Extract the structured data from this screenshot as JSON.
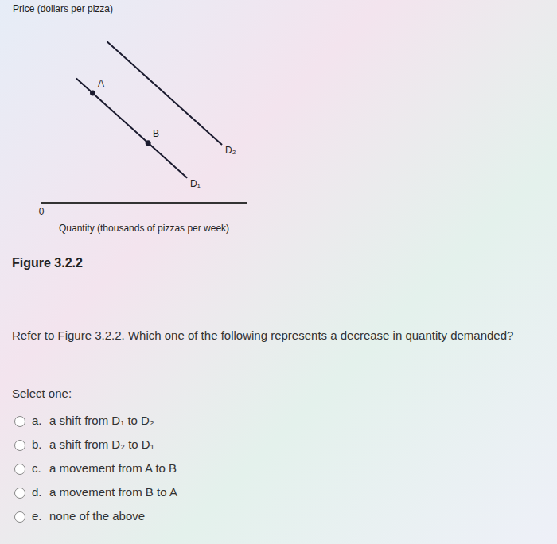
{
  "figure_caption": "Figure 3.2.2",
  "chart_data": {
    "type": "line",
    "x_label": "Quantity (thousands of pizzas per week)",
    "y_label": "Price (dollars per pizza)",
    "xlim": [
      0,
      10
    ],
    "ylim": [
      0,
      10
    ],
    "xticks": [
      0
    ],
    "yticks": [],
    "tick_labels": "x",
    "grid": false,
    "series": [
      {
        "name": "D₁",
        "color": "#1b1b2f",
        "x": [
          1.7,
          7.1
        ],
        "values": [
          6.7,
          1.3
        ]
      },
      {
        "name": "D₂",
        "color": "#1b1b2f",
        "x": [
          3.2,
          8.8
        ],
        "values": [
          8.7,
          3.1
        ]
      }
    ],
    "points": [
      {
        "name": "A",
        "x": 2.5,
        "value": 5.9
      },
      {
        "name": "B",
        "x": 5.2,
        "value": 3.2
      }
    ]
  },
  "question": {
    "text": "Refer to Figure 3.2.2. Which one of the following represents a decrease in quantity demanded?",
    "prompt": "Select one:",
    "options": [
      {
        "letter": "a.",
        "text": "a shift from D₁ to D₂"
      },
      {
        "letter": "b.",
        "text": "a shift from D₂ to D₁"
      },
      {
        "letter": "c.",
        "text": "a movement from A to B"
      },
      {
        "letter": "d.",
        "text": "a movement from B to A"
      },
      {
        "letter": "e.",
        "text": "none of the above"
      }
    ]
  }
}
